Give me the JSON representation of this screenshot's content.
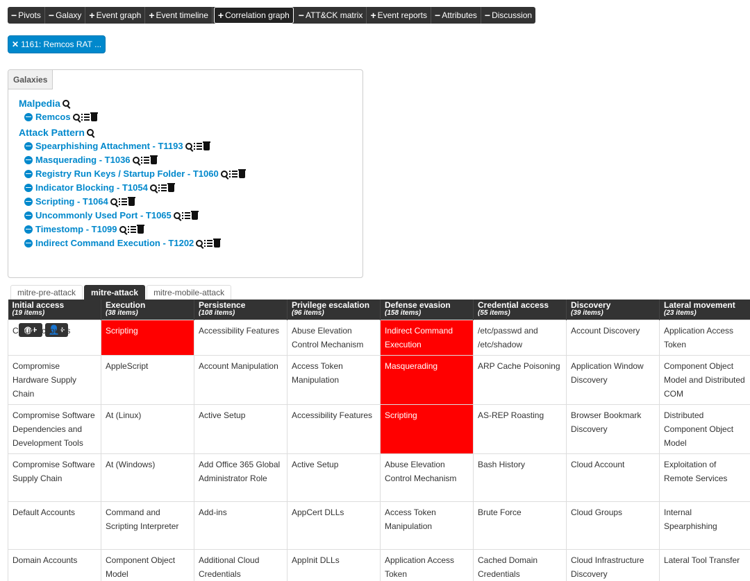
{
  "toolbar": {
    "items": [
      {
        "sym": "−",
        "label": "Pivots"
      },
      {
        "sym": "−",
        "label": "Galaxy"
      },
      {
        "sym": "+",
        "label": "Event graph"
      },
      {
        "sym": "+",
        "label": "Event timeline"
      },
      {
        "sym": "+",
        "label": "Correlation graph"
      },
      {
        "sym": "−",
        "label": "ATT&CK matrix"
      },
      {
        "sym": "+",
        "label": "Event reports"
      },
      {
        "sym": "−",
        "label": "Attributes"
      },
      {
        "sym": "−",
        "label": "Discussion"
      }
    ]
  },
  "pivot": {
    "close": "✕",
    "label": "1161: Remcos RAT ..."
  },
  "galaxies": {
    "tab_label": "Galaxies",
    "groups": [
      {
        "title": "Malpedia",
        "items": [
          "Remcos"
        ]
      },
      {
        "title": "Attack Pattern",
        "items": [
          "Spearphishing Attachment - T1193",
          "Masquerading - T1036",
          "Registry Run Keys / Startup Folder - T1060",
          "Indicator Blocking - T1054",
          "Scripting - T1064",
          "Uncommonly Used Port - T1065",
          "Timestomp - T1099",
          "Indirect Command Execution - T1202"
        ]
      }
    ],
    "add_buttons": [
      "globe-plus",
      "user-plus"
    ]
  },
  "matrix_tabs": [
    {
      "label": "mitre-pre-attack",
      "active": false
    },
    {
      "label": "mitre-attack",
      "active": true
    },
    {
      "label": "mitre-mobile-attack",
      "active": false
    }
  ],
  "matrix": {
    "highlight_color": "#ff0000",
    "columns": [
      {
        "name": "Initial access",
        "count": "(19 items)"
      },
      {
        "name": "Execution",
        "count": "(38 items)"
      },
      {
        "name": "Persistence",
        "count": "(108 items)"
      },
      {
        "name": "Privilege escalation",
        "count": "(96 items)"
      },
      {
        "name": "Defense evasion",
        "count": "(158 items)"
      },
      {
        "name": "Credential access",
        "count": "(55 items)"
      },
      {
        "name": "Discovery",
        "count": "(39 items)"
      },
      {
        "name": "Lateral movement",
        "count": "(23 items)"
      }
    ],
    "rows": [
      [
        "Cloud Accounts",
        "Scripting",
        "Accessibility Features",
        "Abuse Elevation Control Mechanism",
        "Indirect Command Execution",
        "/etc/passwd and /etc/shadow",
        "Account Discovery",
        "Application Access Token"
      ],
      [
        "Compromise Hardware Supply Chain",
        "AppleScript",
        "Account Manipulation",
        "Access Token Manipulation",
        "Masquerading",
        "ARP Cache Poisoning",
        "Application Window Discovery",
        "Component Object Model and Distributed COM"
      ],
      [
        "Compromise Software Dependencies and Development Tools",
        "At (Linux)",
        "Active Setup",
        "Accessibility Features",
        "Scripting",
        "AS-REP Roasting",
        "Browser Bookmark Discovery",
        "Distributed Component Object Model"
      ],
      [
        "Compromise Software Supply Chain",
        "At (Windows)",
        "Add Office 365 Global Administrator Role",
        "Active Setup",
        "Abuse Elevation Control Mechanism",
        "Bash History",
        "Cloud Account",
        "Exploitation of Remote Services"
      ],
      [
        "Default Accounts",
        "Command and Scripting Interpreter",
        "Add-ins",
        "AppCert DLLs",
        "Access Token Manipulation",
        "Brute Force",
        "Cloud Groups",
        "Internal Spearphishing"
      ],
      [
        "Domain Accounts",
        "Component Object Model",
        "Additional Cloud Credentials",
        "AppInit DLLs",
        "Application Access Token",
        "Cached Domain Credentials",
        "Cloud Infrastructure Discovery",
        "Lateral Tool Transfer"
      ]
    ],
    "highlighted": [
      [
        0,
        1
      ],
      [
        0,
        4
      ],
      [
        1,
        4
      ],
      [
        2,
        4
      ]
    ]
  }
}
